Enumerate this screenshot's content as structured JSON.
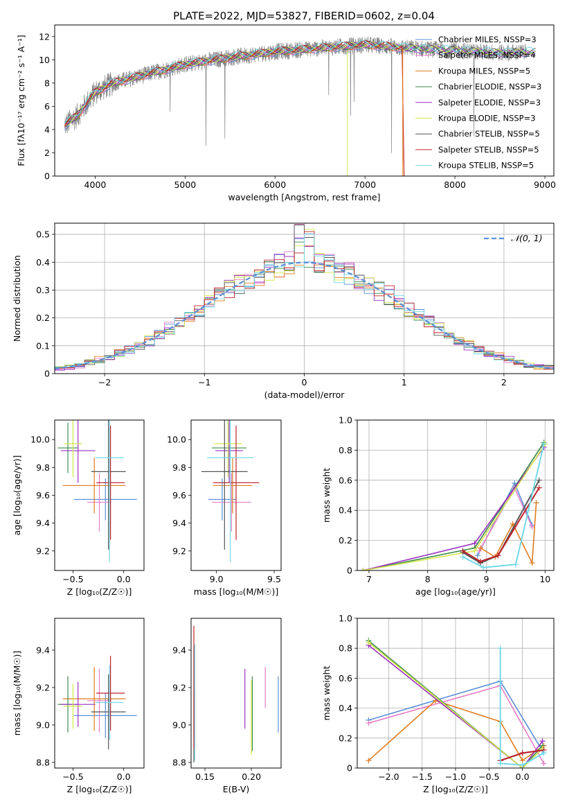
{
  "figure_title": "PLATE=2022, MJD=53827, FIBERID=0602, z=0.04",
  "colors": {
    "chabrier_miles": "#5b8fd6",
    "salpeter_miles": "#e67cc5",
    "kroupa_miles": "#e07b1f",
    "chabrier_elodie": "#3a8a4a",
    "salpeter_elodie": "#9a2fc0",
    "kroupa_elodie": "#d4e64a",
    "chabrier_stelib": "#555555",
    "salpeter_stelib": "#c0202a",
    "kroupa_stelib": "#73d9e6",
    "data_grey": "#808080",
    "gaussian": "#5b8fd6"
  },
  "chart_data": [
    {
      "id": "spectrum",
      "type": "line",
      "title": "PLATE=2022, MJD=53827, FIBERID=0602, z=0.04",
      "xlabel": "wavelength [Angstrom, rest frame]",
      "ylabel": "Flux [fλ10⁻¹⁷ erg cm⁻² s⁻¹ A⁻¹]",
      "xlim": [
        3550,
        9100
      ],
      "ylim": [
        0,
        13
      ],
      "xticks": [
        4000,
        5000,
        6000,
        7000,
        8000,
        9000
      ],
      "yticks": [
        0,
        2,
        4,
        6,
        8,
        10,
        12
      ],
      "grid": false,
      "legend_position": "top-right",
      "legend": [
        "Chabrier MILES, NSSP=3",
        "Salpeter MILES, NSSP=4",
        "Kroupa MILES, NSSP=5",
        "Chabrier ELODIE, NSSP=3",
        "Salpeter ELODIE, NSSP=3",
        "Kroupa ELODIE, NSSP=3",
        "Chabrier STELIB, NSSP=5",
        "Salpeter STELIB, NSSP=5",
        "Kroupa STELIB, NSSP=5"
      ],
      "continuum": {
        "x": [
          3650,
          3800,
          4000,
          4200,
          4500,
          5000,
          5500,
          6000,
          6500,
          7000,
          7500,
          8000,
          8500,
          9000
        ],
        "y": [
          4.3,
          5.2,
          7.2,
          8.0,
          8.6,
          9.6,
          10.2,
          10.7,
          11.0,
          11.3,
          11.0,
          10.8,
          10.6,
          10.7
        ]
      }
    },
    {
      "id": "residuals",
      "type": "line",
      "xlabel": "(data-model)/error",
      "ylabel": "Normed distribution",
      "xlim": [
        -2.5,
        2.5
      ],
      "ylim": [
        0,
        0.54
      ],
      "xticks": [
        -2,
        -1,
        0,
        1,
        2
      ],
      "yticks": [
        0.0,
        0.1,
        0.2,
        0.3,
        0.4,
        0.5
      ],
      "grid": true,
      "legend_position": "top-right",
      "legend": [
        "𝒩(0, 1)"
      ],
      "gaussian": {
        "mean": 0,
        "sigma": 1
      }
    },
    {
      "id": "age_vs_Z",
      "type": "scatter",
      "xlabel": "Z [log₁₀(Z/Z☉)]",
      "ylabel": "age  [log₁₀(age/yr)]",
      "xlim": [
        -0.68,
        0.2
      ],
      "ylim": [
        9.06,
        10.14
      ],
      "xticks": [
        -0.5,
        0.0
      ],
      "yticks": [
        9.2,
        9.4,
        9.6,
        9.8,
        10.0
      ],
      "points": [
        {
          "model": "chabrier_miles",
          "x": -0.18,
          "y": 9.57,
          "xerr": 0.31,
          "yerr": 0.15
        },
        {
          "model": "salpeter_miles",
          "x": -0.24,
          "y": 9.55,
          "xerr": 0.12,
          "yerr": 0.21
        },
        {
          "model": "kroupa_miles",
          "x": -0.29,
          "y": 9.67,
          "xerr": 0.31,
          "yerr": 0.2
        },
        {
          "model": "chabrier_elodie",
          "x": -0.55,
          "y": 9.94,
          "xerr": 0.1,
          "yerr": 0.18
        },
        {
          "model": "salpeter_elodie",
          "x": -0.45,
          "y": 9.92,
          "xerr": 0.17,
          "yerr": 0.23
        },
        {
          "model": "kroupa_elodie",
          "x": -0.5,
          "y": 9.97,
          "xerr": 0.09,
          "yerr": 0.24
        },
        {
          "model": "chabrier_stelib",
          "x": -0.15,
          "y": 9.77,
          "xerr": 0.17,
          "yerr": 0.56
        },
        {
          "model": "salpeter_stelib",
          "x": -0.13,
          "y": 9.69,
          "xerr": 0.14,
          "yerr": 0.41
        },
        {
          "model": "kroupa_stelib",
          "x": -0.14,
          "y": 9.87,
          "xerr": 0.14,
          "yerr": 0.75
        }
      ]
    },
    {
      "id": "age_vs_mass",
      "type": "scatter",
      "xlabel": "mass [log₁₀(M/M☉)]",
      "ylabel": "",
      "xlim": [
        8.78,
        9.56
      ],
      "ylim": [
        9.06,
        10.14
      ],
      "xticks": [
        9.0,
        9.5
      ],
      "yticks": [
        9.2,
        9.4,
        9.6,
        9.8,
        10.0
      ],
      "points": [
        {
          "model": "chabrier_miles",
          "x": 9.05,
          "y": 9.57,
          "xerr": 0.12,
          "yerr": 0.15
        },
        {
          "model": "salpeter_miles",
          "x": 9.13,
          "y": 9.55,
          "xerr": 0.17,
          "yerr": 0.21
        },
        {
          "model": "kroupa_miles",
          "x": 9.14,
          "y": 9.67,
          "xerr": 0.17,
          "yerr": 0.2
        },
        {
          "model": "chabrier_elodie",
          "x": 9.11,
          "y": 9.94,
          "xerr": 0.15,
          "yerr": 0.18
        },
        {
          "model": "salpeter_elodie",
          "x": 9.11,
          "y": 9.92,
          "xerr": 0.12,
          "yerr": 0.23
        },
        {
          "model": "kroupa_elodie",
          "x": 9.1,
          "y": 9.97,
          "xerr": 0.12,
          "yerr": 0.24
        },
        {
          "model": "chabrier_stelib",
          "x": 9.07,
          "y": 9.77,
          "xerr": 0.2,
          "yerr": 0.56
        },
        {
          "model": "salpeter_stelib",
          "x": 9.17,
          "y": 9.69,
          "xerr": 0.2,
          "yerr": 0.41
        },
        {
          "model": "kroupa_stelib",
          "x": 9.12,
          "y": 9.87,
          "xerr": 0.2,
          "yerr": 0.75
        }
      ]
    },
    {
      "id": "mass_weight_vs_age",
      "type": "line",
      "xlabel": "age  [log₁₀(age/yr)]",
      "ylabel": "mass weight",
      "xlim": [
        6.8,
        10.15
      ],
      "ylim": [
        0,
        1.0
      ],
      "xticks": [
        7,
        8,
        9,
        10
      ],
      "yticks": [
        0.0,
        0.2,
        0.4,
        0.6,
        0.8,
        1.0
      ],
      "grid": true,
      "series": [
        {
          "model": "chabrier_miles",
          "x": [
            8.85,
            9.48,
            9.78
          ],
          "y": [
            0.1,
            0.58,
            0.3
          ]
        },
        {
          "model": "salpeter_miles",
          "x": [
            8.88,
            9.48,
            9.78
          ],
          "y": [
            0.13,
            0.55,
            0.29
          ]
        },
        {
          "model": "kroupa_miles",
          "x": [
            8.9,
            9.15,
            9.45,
            9.78,
            9.85
          ],
          "y": [
            0.15,
            0.09,
            0.31,
            0.05,
            0.45
          ]
        },
        {
          "model": "chabrier_elodie",
          "x": [
            6.9,
            8.8,
            9.98
          ],
          "y": [
            0.0,
            0.15,
            0.85
          ]
        },
        {
          "model": "salpeter_elodie",
          "x": [
            6.9,
            8.8,
            9.98
          ],
          "y": [
            0.0,
            0.18,
            0.82
          ]
        },
        {
          "model": "kroupa_elodie",
          "x": [
            6.9,
            8.8,
            10.0
          ],
          "y": [
            0.0,
            0.13,
            0.84
          ]
        },
        {
          "model": "chabrier_stelib",
          "x": [
            8.6,
            8.9,
            9.2,
            9.9
          ],
          "y": [
            0.12,
            0.05,
            0.1,
            0.6
          ]
        },
        {
          "model": "salpeter_stelib",
          "x": [
            8.6,
            8.9,
            9.2,
            9.9
          ],
          "y": [
            0.13,
            0.06,
            0.1,
            0.55
          ]
        },
        {
          "model": "kroupa_stelib",
          "x": [
            8.6,
            8.95,
            9.5,
            9.98
          ],
          "y": [
            0.09,
            0.02,
            0.04,
            0.84
          ]
        }
      ]
    },
    {
      "id": "mass_vs_Z",
      "type": "scatter",
      "xlabel": "Z [log₁₀(Z/Z☉)]",
      "ylabel": "mass [log₁₀(M/M☉)]",
      "xlim": [
        -0.68,
        0.2
      ],
      "ylim": [
        8.77,
        9.57
      ],
      "xticks": [
        -0.5,
        0.0
      ],
      "yticks": [
        8.8,
        9.0,
        9.2,
        9.4
      ],
      "points": [
        {
          "model": "chabrier_miles",
          "x": -0.18,
          "y": 9.05,
          "xerr": 0.31,
          "yerr": 0.12
        },
        {
          "model": "salpeter_miles",
          "x": -0.24,
          "y": 9.13,
          "xerr": 0.12,
          "yerr": 0.17
        },
        {
          "model": "kroupa_miles",
          "x": -0.29,
          "y": 9.14,
          "xerr": 0.31,
          "yerr": 0.17
        },
        {
          "model": "chabrier_elodie",
          "x": -0.55,
          "y": 9.11,
          "xerr": 0.1,
          "yerr": 0.15
        },
        {
          "model": "salpeter_elodie",
          "x": -0.45,
          "y": 9.11,
          "xerr": 0.17,
          "yerr": 0.12
        },
        {
          "model": "kroupa_elodie",
          "x": -0.5,
          "y": 9.1,
          "xerr": 0.09,
          "yerr": 0.12
        },
        {
          "model": "chabrier_stelib",
          "x": -0.15,
          "y": 9.07,
          "xerr": 0.17,
          "yerr": 0.2
        },
        {
          "model": "salpeter_stelib",
          "x": -0.13,
          "y": 9.17,
          "xerr": 0.14,
          "yerr": 0.2
        },
        {
          "model": "kroupa_stelib",
          "x": -0.14,
          "y": 9.12,
          "xerr": 0.14,
          "yerr": 0.2
        }
      ]
    },
    {
      "id": "mass_vs_ebv",
      "type": "scatter",
      "xlabel": "E(B-V)",
      "ylabel": "",
      "xlim": [
        0.135,
        0.232
      ],
      "ylim": [
        8.77,
        9.57
      ],
      "xticks": [
        0.15,
        0.2
      ],
      "yticks": [
        8.8,
        9.0,
        9.2,
        9.4
      ],
      "points": [
        {
          "model": "chabrier_miles",
          "x": 0.229,
          "y": 9.11,
          "yerr": 0.15
        },
        {
          "model": "salpeter_miles",
          "x": 0.215,
          "y": 9.2,
          "yerr": 0.11
        },
        {
          "model": "kroupa_miles",
          "x": 0.138,
          "y": 9.05,
          "yerr": 0.12
        },
        {
          "model": "chabrier_elodie",
          "x": 0.201,
          "y": 9.06,
          "yerr": 0.2
        },
        {
          "model": "salpeter_elodie",
          "x": 0.193,
          "y": 9.14,
          "yerr": 0.16
        },
        {
          "model": "kroupa_elodie",
          "x": 0.2,
          "y": 9.04,
          "yerr": 0.2
        },
        {
          "model": "chabrier_stelib",
          "x": 0.138,
          "y": 9.11,
          "yerr": 0.31
        },
        {
          "model": "salpeter_stelib",
          "x": 0.138,
          "y": 9.2,
          "yerr": 0.33
        },
        {
          "model": "kroupa_stelib",
          "x": 0.139,
          "y": 9.12,
          "yerr": 0.31
        }
      ]
    },
    {
      "id": "mass_weight_vs_Z",
      "type": "line",
      "xlabel": "Z [log₁₀(Z/Z☉)]",
      "ylabel": "mass weight",
      "xlim": [
        -2.47,
        0.47
      ],
      "ylim": [
        0,
        1.0
      ],
      "xticks": [
        -2.0,
        -1.5,
        -1.0,
        -0.5,
        0.0
      ],
      "yticks": [
        0.0,
        0.2,
        0.4,
        0.6,
        0.8,
        1.0
      ],
      "grid": true,
      "series": [
        {
          "model": "chabrier_miles",
          "x": [
            -2.3,
            -0.33,
            0.32
          ],
          "y": [
            0.32,
            0.58,
            0.1
          ]
        },
        {
          "model": "salpeter_miles",
          "x": [
            -2.3,
            -0.33,
            0.32
          ],
          "y": [
            0.3,
            0.55,
            0.03
          ]
        },
        {
          "model": "kroupa_miles",
          "x": [
            -2.3,
            -1.3,
            -0.33,
            0.0,
            0.32
          ],
          "y": [
            0.05,
            0.45,
            0.31,
            0.05,
            0.15
          ]
        },
        {
          "model": "chabrier_elodie",
          "x": [
            -2.3,
            0.0,
            0.3
          ],
          "y": [
            0.85,
            0.0,
            0.15
          ]
        },
        {
          "model": "salpeter_elodie",
          "x": [
            -2.3,
            0.0,
            0.3
          ],
          "y": [
            0.82,
            0.0,
            0.18
          ]
        },
        {
          "model": "kroupa_elodie",
          "x": [
            -2.3,
            0.0,
            0.3
          ],
          "y": [
            0.84,
            0.0,
            0.13
          ]
        },
        {
          "model": "chabrier_stelib",
          "x": [
            -0.33,
            0.0,
            0.32
          ],
          "y": [
            0.05,
            0.1,
            0.12
          ]
        },
        {
          "model": "salpeter_stelib",
          "x": [
            -0.33,
            0.0,
            0.32
          ],
          "y": [
            0.05,
            0.1,
            0.12
          ]
        },
        {
          "model": "kroupa_stelib",
          "x": [
            -0.33,
            -0.33,
            0.0,
            0.32
          ],
          "y": [
            0.8,
            0.03,
            0.02,
            0.1
          ]
        }
      ]
    }
  ]
}
